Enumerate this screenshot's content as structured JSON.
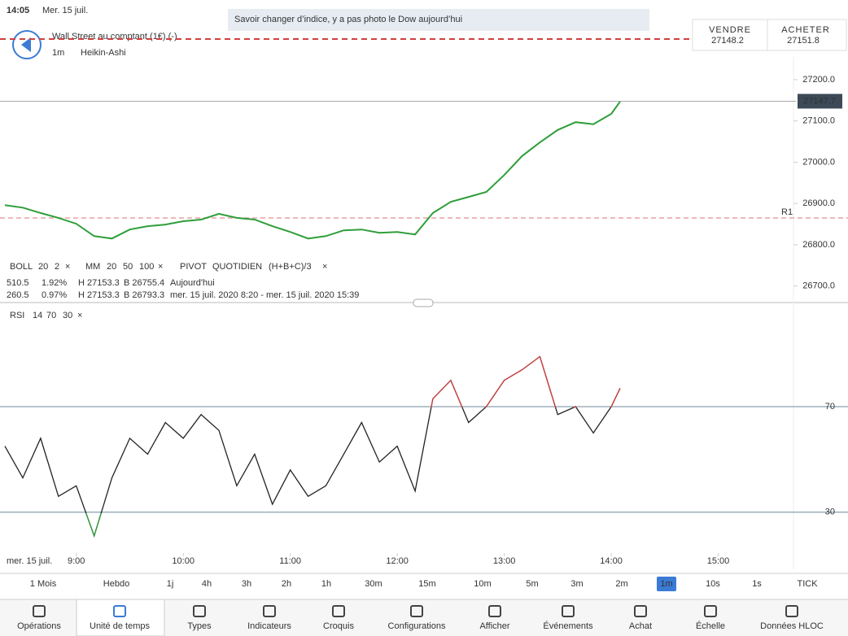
{
  "status": {
    "time": "14:05",
    "date": "Mer. 15 juil."
  },
  "banner": "Savoir changer d’indice, y a pas photo le Dow aujourd’hui",
  "instrument": {
    "name": "Wall Street au comptant (1€) (-)",
    "timeframe": "1m",
    "chart_type": "Heikin-Ashi"
  },
  "sell": {
    "label": "VENDRE",
    "price": "27148.2"
  },
  "buy": {
    "label": "ACHETER",
    "price": "27151.8"
  },
  "close": "×",
  "legend": {
    "boll": [
      "BOLL",
      "20",
      "2"
    ],
    "mm": [
      "MM",
      "20",
      "50",
      "100"
    ],
    "pivot": [
      "PIVOT",
      "QUOTIDIEN",
      "(H+B+C)/3"
    ]
  },
  "stats": [
    [
      "510.5",
      "1.92%",
      "H 27153.3",
      "B 26755.4",
      "Aujourd'hui"
    ],
    [
      "260.5",
      "0.97%",
      "H 27153.3",
      "B 26793.3",
      "mer. 15 juil. 2020 8:20 - mer. 15 juil. 2020 15:39"
    ]
  ],
  "rsi_legend": [
    "RSI",
    "14",
    "70",
    "30"
  ],
  "chart_data": [
    {
      "type": "line",
      "color": "#2e9e3a",
      "x": [
        8.333,
        8.5,
        8.667,
        8.833,
        9,
        9.167,
        9.333,
        9.5,
        9.667,
        9.833,
        10,
        10.167,
        10.333,
        10.5,
        10.667,
        10.833,
        11,
        11.167,
        11.333,
        11.5,
        11.667,
        11.833,
        12,
        12.167,
        12.333,
        12.5,
        12.667,
        12.833,
        13,
        13.167,
        13.333,
        13.5,
        13.667,
        13.833,
        14,
        14.083
      ],
      "values": [
        26896,
        26890,
        26877,
        26865,
        26851,
        26821,
        26815,
        26837,
        26845,
        26849,
        26857,
        26861,
        26875,
        26865,
        26861,
        26845,
        26831,
        26815,
        26821,
        26835,
        26837,
        26829,
        26831,
        26825,
        26877,
        26904,
        26916,
        26928,
        26969,
        27015,
        27048,
        27078,
        27097,
        27092,
        27117,
        27147
      ],
      "xlim": [
        8.31,
        15.65
      ],
      "ylim": [
        26660,
        27255
      ],
      "yticks": [
        {
          "value": 26700,
          "label": "26700.0"
        },
        {
          "value": 26800,
          "label": "26800.0"
        },
        {
          "value": 26900,
          "label": "26900.0"
        },
        {
          "value": 27000,
          "label": "27000.0"
        },
        {
          "value": 27100,
          "label": "27100.0"
        },
        {
          "value": 27200,
          "label": "27200.0"
        }
      ],
      "current_price": {
        "value": 27147.7,
        "label": "27147.7"
      },
      "pivot_r1": {
        "value": 26865,
        "label": "R1"
      }
    },
    {
      "type": "line",
      "color": "#222222",
      "overbought_color": "#d04040",
      "oversold_color": "#2e9e3a",
      "x": [
        8.333,
        8.5,
        8.667,
        8.833,
        9,
        9.167,
        9.333,
        9.5,
        9.667,
        9.833,
        10,
        10.167,
        10.333,
        10.5,
        10.667,
        10.833,
        11,
        11.167,
        11.333,
        11.5,
        11.667,
        11.833,
        12,
        12.167,
        12.333,
        12.5,
        12.667,
        12.833,
        13,
        13.167,
        13.333,
        13.5,
        13.667,
        13.833,
        14,
        14.083
      ],
      "values": [
        55,
        43,
        58,
        36,
        40,
        21,
        43,
        58,
        52,
        64,
        58,
        67,
        61,
        40,
        52,
        33,
        46,
        36,
        40,
        52,
        64,
        49,
        55,
        38,
        73,
        80,
        64,
        70,
        80,
        84,
        89,
        67,
        70,
        60,
        70,
        77
      ],
      "xlim": [
        8.31,
        15.65
      ],
      "ylim": [
        14.5,
        107
      ],
      "yticks": [
        30,
        70
      ],
      "date_label": "mer. 15 juil.",
      "xticks": [
        {
          "value": 9,
          "label": "9:00"
        },
        {
          "value": 10,
          "label": "10:00"
        },
        {
          "value": 11,
          "label": "11:00"
        },
        {
          "value": 12,
          "label": "12:00"
        },
        {
          "value": 13,
          "label": "13:00"
        },
        {
          "value": 14,
          "label": "14:00"
        },
        {
          "value": 15,
          "label": "15:00"
        }
      ]
    }
  ],
  "timeframes": [
    "1 Mois",
    "Hebdo",
    "1j",
    "4h",
    "3h",
    "2h",
    "1h",
    "30m",
    "15m",
    "10m",
    "5m",
    "3m",
    "2m",
    "1m",
    "10s",
    "1s",
    "TICK"
  ],
  "selected_timeframe": 13,
  "toolbar": [
    "Opérations",
    "Unité de temps",
    "Types",
    "Indicateurs",
    "Croquis",
    "Configurations",
    "Afficher",
    "Événements",
    "Achat",
    "Échelle",
    "Données HLOC"
  ],
  "selected_tool": 1
}
